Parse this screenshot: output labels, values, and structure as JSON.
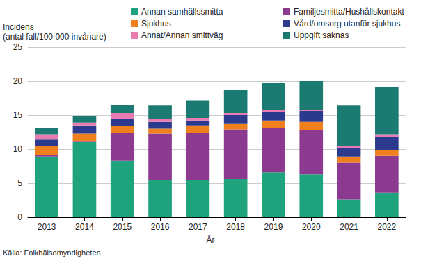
{
  "chart_data": {
    "type": "bar",
    "stacked": true,
    "ylabel": "Incidens\n(antal fall/100 000 invånare)",
    "xlabel": "År",
    "annotations": [
      {
        "text": "Källa: Folkhälsomyndigheten"
      }
    ],
    "categories": [
      "2013",
      "2014",
      "2015",
      "2016",
      "2017",
      "2018",
      "2019",
      "2020",
      "2021",
      "2022"
    ],
    "series": [
      {
        "name": "Annan samhällssmitta",
        "color": "#1fa37c",
        "values": [
          8.9,
          11.1,
          8.3,
          5.5,
          5.5,
          5.6,
          6.6,
          6.3,
          2.6,
          3.6
        ]
      },
      {
        "name": "Familjesmitta/Hushållskontakt",
        "color": "#8b3a8f",
        "values": [
          0.2,
          0.1,
          4.1,
          6.8,
          6.9,
          7.3,
          6.5,
          6.5,
          5.4,
          5.4
        ]
      },
      {
        "name": "Sjukhus",
        "color": "#f07f1e",
        "values": [
          1.4,
          1.1,
          1.0,
          0.7,
          1.1,
          0.9,
          1.1,
          1.2,
          0.9,
          0.9
        ]
      },
      {
        "name": "Vård/omsorg utanför sjukhus",
        "color": "#2b3a8c",
        "values": [
          0.9,
          1.2,
          1.0,
          1.0,
          0.7,
          1.2,
          1.3,
          1.6,
          1.3,
          1.9
        ]
      },
      {
        "name": "Annat/Annan smittväg",
        "color": "#e87bb0",
        "values": [
          0.8,
          0.4,
          0.9,
          0.4,
          0.4,
          0.3,
          0.3,
          0.2,
          0.3,
          0.4
        ]
      },
      {
        "name": "Uppgift saknas",
        "color": "#1b7a72",
        "values": [
          0.9,
          1.0,
          1.2,
          2.0,
          2.6,
          3.4,
          3.9,
          4.2,
          5.9,
          6.9
        ]
      }
    ],
    "ylim": [
      0,
      25
    ],
    "yticks": [
      0,
      5,
      10,
      15,
      20,
      25
    ],
    "grid": true,
    "legend": "top"
  }
}
